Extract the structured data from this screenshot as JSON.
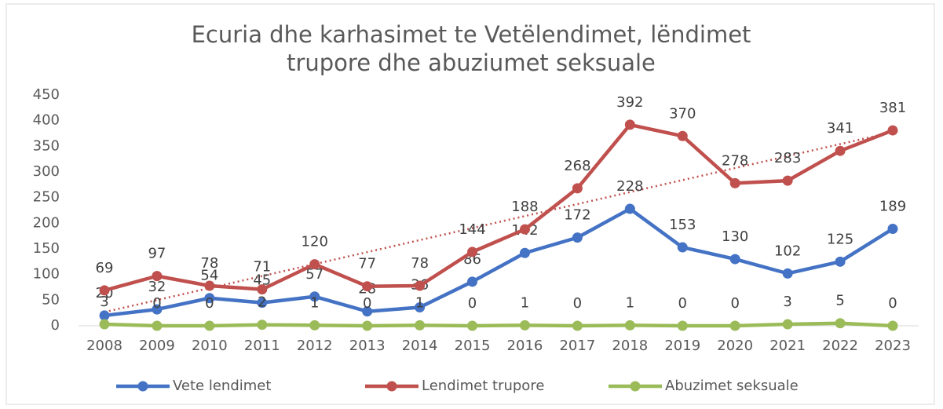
{
  "chart_data": {
    "type": "line",
    "title": [
      "Ecuria dhe karhasimet te Vetëlendimet, lëndimet",
      "trupore dhe abuziumet seksuale"
    ],
    "categories": [
      "2008",
      "2009",
      "2010",
      "2011",
      "2012",
      "2013",
      "2014",
      "2015",
      "2016",
      "2017",
      "2018",
      "2019",
      "2020",
      "2021",
      "2022",
      "2023"
    ],
    "series": [
      {
        "name": "Vete lendimet",
        "color": "#4472c4",
        "values": [
          20,
          32,
          54,
          45,
          57,
          28,
          36,
          86,
          142,
          172,
          228,
          153,
          130,
          102,
          125,
          189
        ]
      },
      {
        "name": "Lendimet trupore",
        "color": "#c0504d",
        "values": [
          69,
          97,
          78,
          71,
          120,
          77,
          78,
          144,
          188,
          268,
          392,
          370,
          278,
          283,
          341,
          381
        ],
        "trendline": "linear"
      },
      {
        "name": "Abuzimet seksuale",
        "color": "#9bbb59",
        "values": [
          3,
          0,
          0,
          2,
          1,
          0,
          1,
          0,
          1,
          0,
          1,
          0,
          0,
          3,
          5,
          0
        ]
      }
    ],
    "ylim": [
      0,
      450
    ],
    "yticks": [
      0,
      50,
      100,
      150,
      200,
      250,
      300,
      350,
      400,
      450
    ],
    "grid": false,
    "legend": "bottom"
  }
}
